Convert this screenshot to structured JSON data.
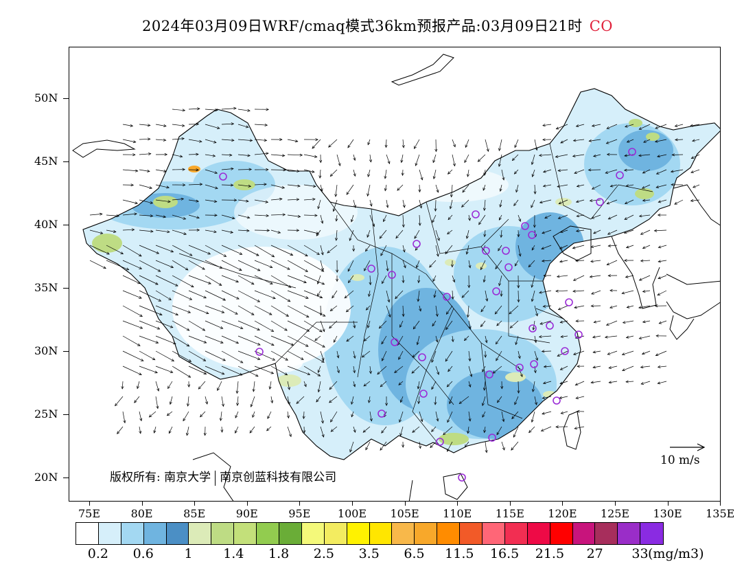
{
  "title": {
    "main": "2024年03月09日WRF/cmaq模式36km预报产品:03月09日21时",
    "species": "CO"
  },
  "map": {
    "lat_labels": [
      "50N",
      "45N",
      "40N",
      "35N",
      "30N",
      "25N",
      "20N"
    ],
    "lon_labels": [
      "75E",
      "80E",
      "85E",
      "90E",
      "95E",
      "100E",
      "105E",
      "110E",
      "115E",
      "120E",
      "125E",
      "130E",
      "135E"
    ],
    "wind_reference": "10 m/s",
    "copyright": {
      "prefix": "版权所有:",
      "org1": "南京大学",
      "org2": "南京创蓝科技有限公司"
    },
    "station_marker_color": "#9a2bd6"
  },
  "legend": {
    "colors": [
      "#ffffff",
      "#d6effa",
      "#a3d8f2",
      "#6fb4e0",
      "#4b8fc5",
      "#dcebb8",
      "#bedc84",
      "#c3e07a",
      "#92cc4f",
      "#6aad37",
      "#f4f97a",
      "#f3ec60",
      "#fff200",
      "#ffe600",
      "#f8b84a",
      "#f8a82a",
      "#ff8c00",
      "#f25a28",
      "#ff6677",
      "#f22e52",
      "#ee0a46",
      "#ff0000",
      "#c8147c",
      "#a72e5c",
      "#9a2dc8",
      "#8a2be2"
    ],
    "labels": [
      "0.2",
      "0.6",
      "1",
      "1.4",
      "1.8",
      "2.5",
      "3.5",
      "6.5",
      "11.5",
      "16.5",
      "21.5",
      "27",
      "33"
    ],
    "unit": "(mg/m3)"
  }
}
